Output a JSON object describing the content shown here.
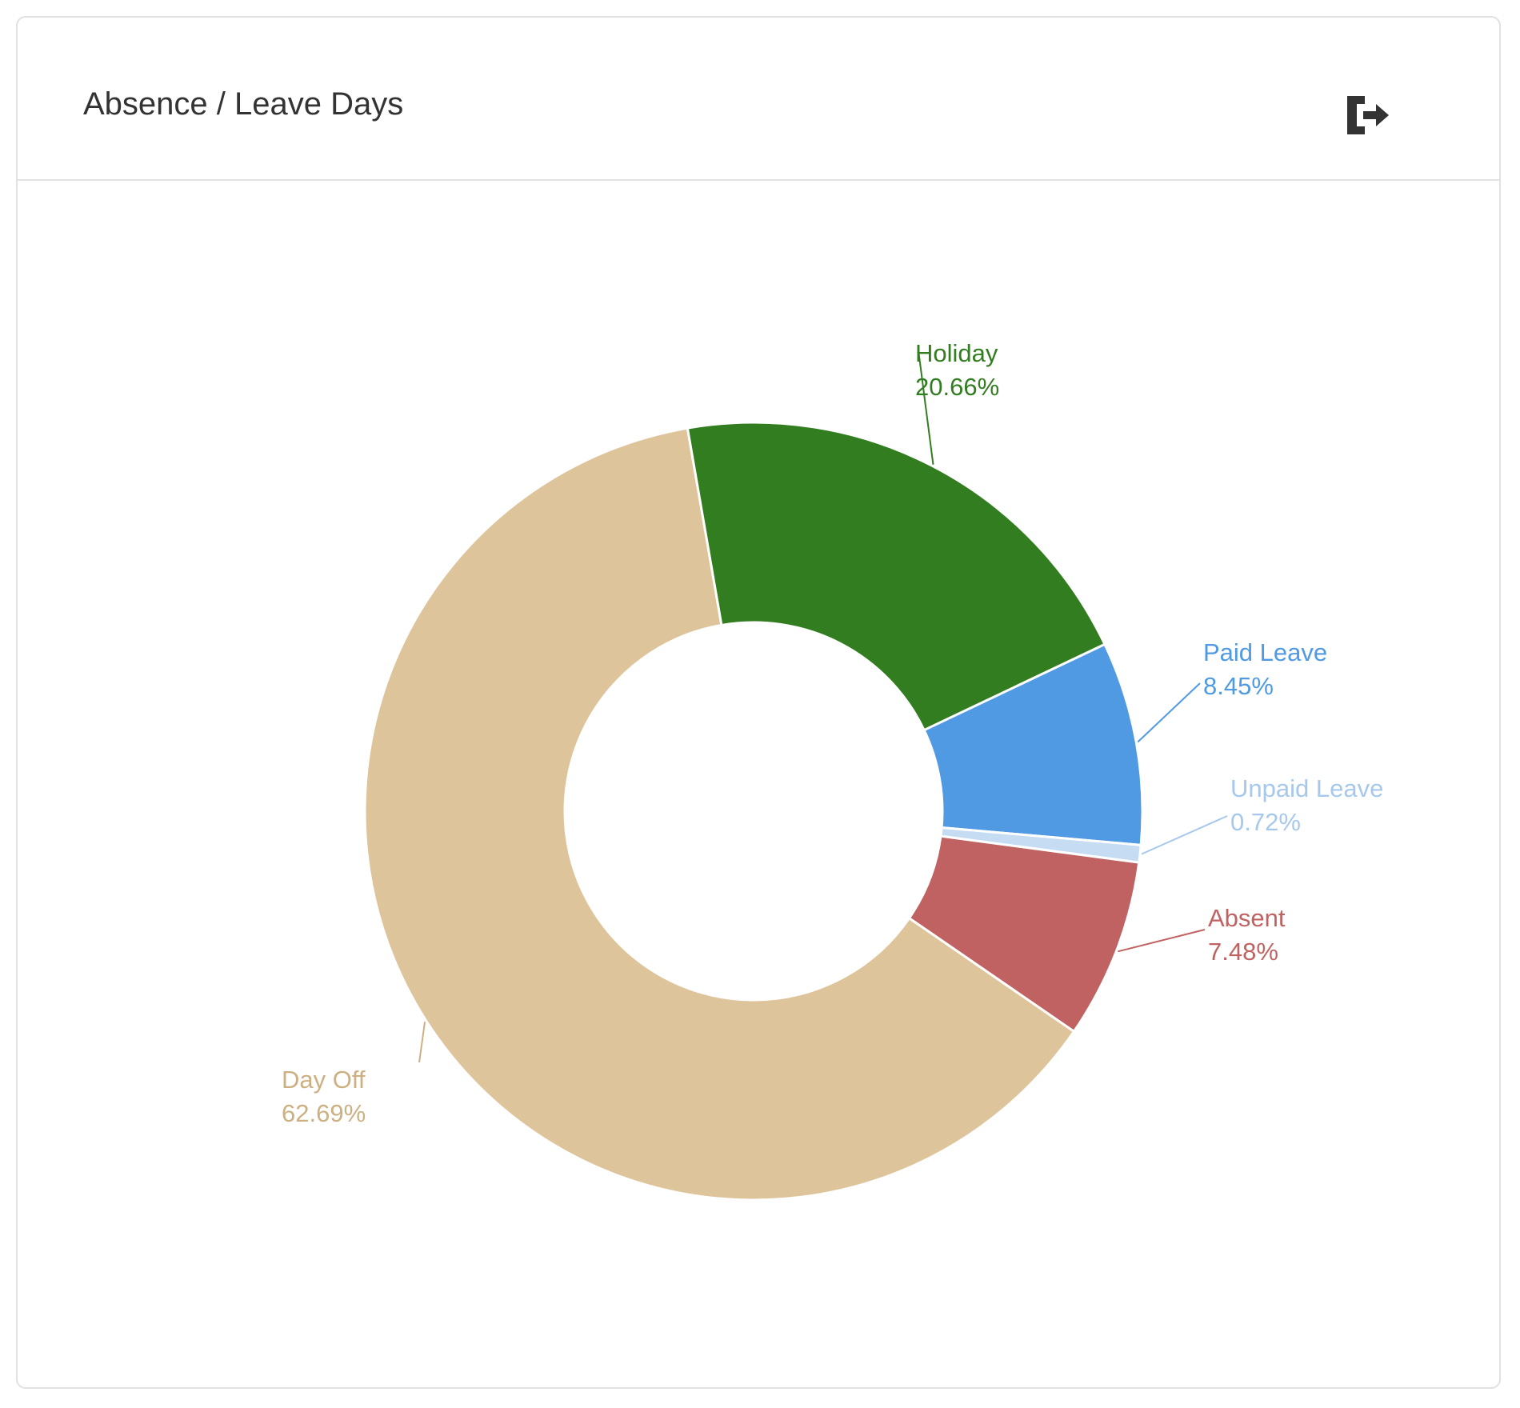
{
  "card": {
    "title": "Absence / Leave Days",
    "export_icon": "sign-out-icon"
  },
  "chart_data": {
    "type": "pie",
    "variant": "donut",
    "title": "",
    "slices": [
      {
        "label": "Holiday",
        "value": 20.66,
        "value_label": "20.66%",
        "color": "#327d20"
      },
      {
        "label": "Paid Leave",
        "value": 8.45,
        "value_label": "8.45%",
        "color": "#4f9ae3"
      },
      {
        "label": "Unpaid Leave",
        "value": 0.72,
        "value_label": "0.72%",
        "color": "#c6dcf2",
        "label_color": "#a6c8ec"
      },
      {
        "label": "Absent",
        "value": 7.48,
        "value_label": "7.48%",
        "color": "#c06262"
      },
      {
        "label": "Day Off",
        "value": 62.69,
        "value_label": "62.69%",
        "color": "#dec49b",
        "label_color": "#cdb082"
      }
    ]
  }
}
